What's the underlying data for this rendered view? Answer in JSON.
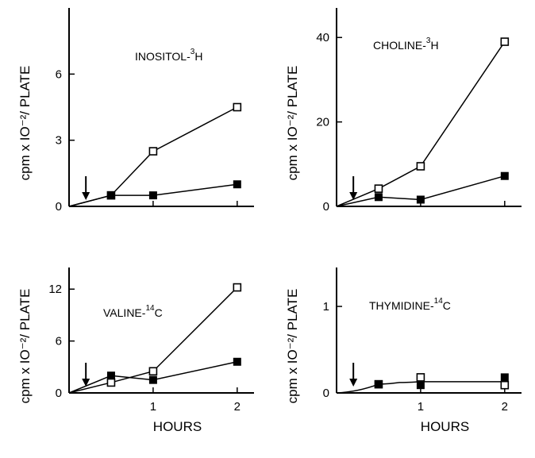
{
  "chart_data": [
    {
      "type": "line",
      "label_main": "INOSITOL-",
      "label_sup": "3",
      "label_tail": "H",
      "ylabel": "cpm x IO⁻²/ PLATE",
      "xlabel": "",
      "xlim": [
        0,
        2.2
      ],
      "ylim": [
        0,
        9
      ],
      "x_ticks": [],
      "y_ticks": [
        0,
        3,
        6
      ],
      "y_tick_labels": [
        "0",
        "3",
        "6"
      ],
      "arrow_at_x": 0.2,
      "series": [
        {
          "marker": "open-square",
          "x": [
            0,
            0.5,
            1,
            2
          ],
          "values": [
            0,
            0.5,
            2.5,
            4.5
          ]
        },
        {
          "marker": "filled-square",
          "x": [
            0,
            0.5,
            1,
            2
          ],
          "values": [
            0,
            0.5,
            0.5,
            1.0
          ]
        }
      ]
    },
    {
      "type": "line",
      "label_main": "CHOLINE-",
      "label_sup": "3",
      "label_tail": "H",
      "ylabel": "cpm x IO⁻²/ PLATE",
      "xlabel": "",
      "xlim": [
        0,
        2.2
      ],
      "ylim": [
        0,
        47
      ],
      "x_ticks": [],
      "y_ticks": [
        0,
        20,
        40
      ],
      "y_tick_labels": [
        "0",
        "20",
        "40"
      ],
      "arrow_at_x": 0.2,
      "series": [
        {
          "marker": "open-square",
          "x": [
            0,
            0.5,
            1,
            2
          ],
          "values": [
            0,
            4.2,
            9.5,
            39
          ]
        },
        {
          "marker": "filled-square",
          "x": [
            0,
            0.5,
            1,
            2
          ],
          "values": [
            0,
            2.2,
            1.6,
            7.2
          ]
        }
      ]
    },
    {
      "type": "line",
      "label_main": "VALINE-",
      "label_sup": "14",
      "label_tail": "C",
      "ylabel": "cpm x IO⁻²/ PLATE",
      "xlabel": "HOURS",
      "xlim": [
        0,
        2.2
      ],
      "ylim": [
        0,
        14.5
      ],
      "x_ticks": [
        1,
        2
      ],
      "x_tick_labels": [
        "1",
        "2"
      ],
      "y_ticks": [
        0,
        6,
        12
      ],
      "y_tick_labels": [
        "0",
        "6",
        "12"
      ],
      "arrow_at_x": 0.2,
      "series": [
        {
          "marker": "open-square",
          "x": [
            0,
            0.5,
            1,
            2
          ],
          "values": [
            0,
            1.2,
            2.5,
            12.2
          ]
        },
        {
          "marker": "filled-square",
          "x": [
            0,
            0.5,
            1,
            2
          ],
          "values": [
            0,
            2.0,
            1.5,
            3.6
          ]
        }
      ]
    },
    {
      "type": "line",
      "label_main": "THYMIDINE-",
      "label_sup": "14",
      "label_tail": "C",
      "ylabel": "cpm x IO⁻²/ PLATE",
      "xlabel": "HOURS",
      "xlim": [
        0,
        2.2
      ],
      "ylim": [
        0,
        1.45
      ],
      "x_ticks": [
        1,
        2
      ],
      "x_tick_labels": [
        "1",
        "2"
      ],
      "y_ticks": [
        0,
        1
      ],
      "y_tick_labels": [
        "0",
        "1"
      ],
      "arrow_at_x": 0.2,
      "series": [
        {
          "marker": "none-curve",
          "x": [
            0,
            0.5,
            0.75,
            1,
            1.5,
            2
          ],
          "values": [
            0,
            0.1,
            0.12,
            0.13,
            0.13,
            0.13
          ]
        },
        {
          "marker": "open-square",
          "x": [
            0.5,
            1,
            2
          ],
          "values": [
            0.1,
            0.18,
            0.09
          ]
        },
        {
          "marker": "filled-square",
          "x": [
            0.5,
            1,
            2
          ],
          "values": [
            0.1,
            0.09,
            0.18
          ]
        }
      ]
    }
  ]
}
